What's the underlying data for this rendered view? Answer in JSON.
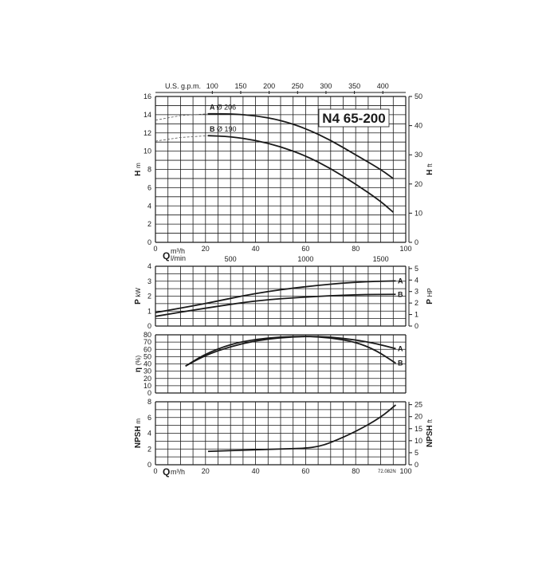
{
  "model_label": "N4 65-200",
  "code": "72.082N",
  "top_axis": {
    "label": "U.S. g.p.m.",
    "ticks": [
      "100",
      "150",
      "200",
      "250",
      "300",
      "350",
      "400"
    ]
  },
  "flow_axis": {
    "unit_label": "Q",
    "unit_m3h": "m³/h",
    "unit_lmin": "l/min",
    "ticks_m3h": [
      "0",
      "20",
      "40",
      "60",
      "80",
      "100"
    ],
    "ticks_lmin": [
      "0",
      "500",
      "1000",
      "1500"
    ]
  },
  "colors": {
    "ink": "#1a1a1a",
    "grid": "#1a1a1a",
    "background": "#ffffff"
  },
  "chart_data": [
    {
      "id": "head",
      "type": "line",
      "ylabel": "H",
      "yunit": "m",
      "y2label": "H",
      "y2unit": "ft",
      "xlim": [
        0,
        100
      ],
      "ylim": [
        0,
        16
      ],
      "yticks": [
        "0",
        "2",
        "4",
        "6",
        "8",
        "10",
        "12",
        "14",
        "16"
      ],
      "y2ticks": [
        "0",
        "10",
        "20",
        "30",
        "40",
        "50"
      ],
      "series": [
        {
          "name": "A",
          "impeller": "Ø 206",
          "x": [
            21,
            30,
            40,
            50,
            60,
            70,
            80,
            90,
            95
          ],
          "y": [
            14.1,
            14.1,
            13.9,
            13.4,
            12.5,
            11.2,
            9.6,
            8.0,
            7.0
          ],
          "dashed_x": [
            0,
            10,
            21
          ],
          "dashed_y": [
            13.4,
            13.9,
            14.1
          ]
        },
        {
          "name": "B",
          "impeller": "Ø 190",
          "x": [
            21,
            30,
            40,
            50,
            60,
            70,
            80,
            90,
            95
          ],
          "y": [
            11.7,
            11.6,
            11.2,
            10.5,
            9.5,
            8.1,
            6.4,
            4.5,
            3.3
          ],
          "dashed_x": [
            0,
            10,
            21
          ],
          "dashed_y": [
            11.1,
            11.5,
            11.7
          ]
        }
      ]
    },
    {
      "id": "power",
      "type": "line",
      "ylabel": "P",
      "yunit": "kW",
      "y2label": "P",
      "y2unit": "HP",
      "xlim": [
        0,
        100
      ],
      "ylim": [
        0,
        4
      ],
      "yticks": [
        "0",
        "1",
        "2",
        "3",
        "4"
      ],
      "y2ticks": [
        "0",
        "1",
        "2",
        "3",
        "4",
        "5"
      ],
      "series": [
        {
          "name": "A",
          "x": [
            0,
            20,
            40,
            60,
            80,
            96
          ],
          "y": [
            0.9,
            1.5,
            2.2,
            2.65,
            2.95,
            3.02
          ]
        },
        {
          "name": "B",
          "x": [
            0,
            20,
            40,
            60,
            80,
            96
          ],
          "y": [
            0.65,
            1.2,
            1.7,
            1.95,
            2.1,
            2.12
          ]
        }
      ]
    },
    {
      "id": "efficiency",
      "type": "line",
      "ylabel": "η",
      "yunit": "(%)",
      "xlim": [
        0,
        100
      ],
      "ylim": [
        0,
        80
      ],
      "yticks": [
        "0",
        "10",
        "20",
        "30",
        "40",
        "50",
        "60",
        "70",
        "80"
      ],
      "series": [
        {
          "name": "A",
          "x": [
            12,
            20,
            30,
            40,
            50,
            60,
            70,
            80,
            88,
            96
          ],
          "y": [
            37,
            52,
            64,
            72,
            76,
            78,
            77,
            73,
            68,
            61
          ]
        },
        {
          "name": "B",
          "x": [
            12,
            20,
            30,
            40,
            50,
            60,
            70,
            80,
            88,
            96
          ],
          "y": [
            37,
            54,
            67,
            74,
            77,
            78,
            76,
            70,
            59,
            41
          ]
        }
      ]
    },
    {
      "id": "npsh",
      "type": "line",
      "ylabel": "NPSH",
      "yunit": "m",
      "y2label": "NPSH",
      "y2unit": "ft",
      "xlim": [
        0,
        100
      ],
      "ylim": [
        0,
        8
      ],
      "yticks": [
        "0",
        "2",
        "4",
        "6",
        "8"
      ],
      "y2ticks": [
        "0",
        "5",
        "10",
        "15",
        "20",
        "25"
      ],
      "series": [
        {
          "name": "NPSH",
          "x": [
            21,
            30,
            40,
            50,
            60,
            65,
            70,
            80,
            90,
            96
          ],
          "y": [
            1.7,
            1.8,
            1.9,
            2.0,
            2.1,
            2.3,
            2.8,
            4.2,
            6.0,
            7.6
          ]
        }
      ]
    }
  ]
}
